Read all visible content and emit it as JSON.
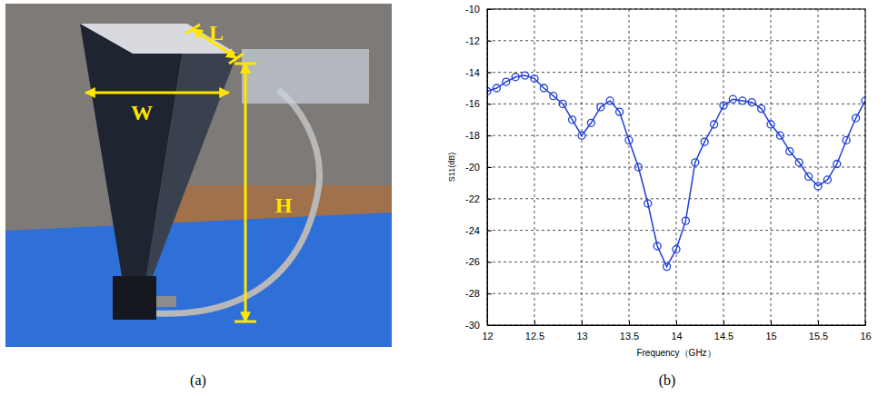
{
  "photo": {
    "labels": [
      "W",
      "L",
      "H"
    ],
    "caption": "(a)"
  },
  "chart_data": {
    "type": "line",
    "caption": "(b)",
    "x_label": "Frequency（GHz）",
    "y_label": "S11(dB)",
    "x": [
      12.0,
      12.1,
      12.2,
      12.3,
      12.4,
      12.5,
      12.6,
      12.7,
      12.8,
      12.9,
      13.0,
      13.1,
      13.2,
      13.3,
      13.4,
      13.5,
      13.6,
      13.7,
      13.8,
      13.9,
      14.0,
      14.1,
      14.2,
      14.3,
      14.4,
      14.5,
      14.6,
      14.7,
      14.8,
      14.9,
      15.0,
      15.1,
      15.2,
      15.3,
      15.4,
      15.5,
      15.6,
      15.7,
      15.8,
      15.9,
      16.0
    ],
    "values": [
      -15.2,
      -15.0,
      -14.6,
      -14.3,
      -14.2,
      -14.4,
      -15.0,
      -15.5,
      -16.0,
      -17.0,
      -18.0,
      -17.2,
      -16.2,
      -15.8,
      -16.5,
      -18.3,
      -20.0,
      -22.3,
      -25.0,
      -26.3,
      -25.2,
      -23.4,
      -19.7,
      -18.4,
      -17.3,
      -16.1,
      -15.7,
      -15.8,
      -15.9,
      -16.3,
      -17.3,
      -18.0,
      -19.0,
      -19.7,
      -20.6,
      -21.2,
      -20.8,
      -19.8,
      -18.3,
      -16.9,
      -15.8
    ],
    "color": "#1f3fd6",
    "marker": "circle",
    "line_style": "solid",
    "xlim": [
      12,
      16
    ],
    "xticks": [
      12,
      12.5,
      13,
      13.5,
      14,
      14.5,
      15,
      15.5,
      16
    ],
    "ylim": [
      -30,
      -10
    ],
    "yticks": [
      -30,
      -28,
      -26,
      -24,
      -22,
      -20,
      -18,
      -16,
      -14,
      -12,
      -10
    ],
    "grid": true
  }
}
